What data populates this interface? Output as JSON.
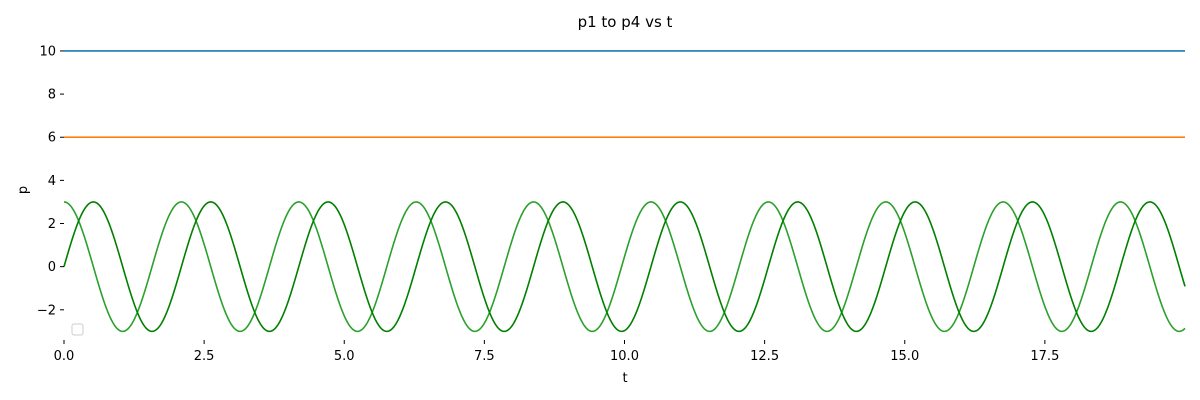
{
  "chart_data": {
    "type": "line",
    "title": "p1 to p4 vs t",
    "xlabel": "t",
    "ylabel": "p",
    "xlim": [
      0,
      20
    ],
    "ylim": [
      -3.4,
      10.6
    ],
    "xticks": [
      "0.0",
      "2.5",
      "5.0",
      "7.5",
      "10.0",
      "12.5",
      "15.0",
      "17.5"
    ],
    "xtick_values": [
      0,
      2.5,
      5,
      7.5,
      10,
      12.5,
      15,
      17.5
    ],
    "yticks": [
      "−2",
      "0",
      "2",
      "4",
      "6",
      "8",
      "10"
    ],
    "ytick_values": [
      -2,
      0,
      2,
      4,
      6,
      8,
      10
    ],
    "grid": false,
    "legend_position": "bottom-left",
    "series": [
      {
        "color": "#1f77b4",
        "x": [
          0,
          20
        ],
        "y": [
          10,
          10
        ]
      },
      {
        "color": "#ff7f0e",
        "x": [
          0,
          20
        ],
        "y": [
          6,
          6
        ]
      },
      {
        "color": "#2ca02c",
        "formula": "3*cos(3*t)",
        "x": [
          0,
          1.05,
          2.09,
          3.14,
          4.19,
          5.24,
          6.28,
          7.33,
          8.38,
          9.42,
          10.47,
          11.52,
          12.57,
          13.61,
          14.66,
          15.71,
          16.76,
          17.8,
          18.85,
          19.9
        ],
        "y": [
          3,
          -3,
          3,
          -3,
          3,
          -3,
          3,
          -3,
          3,
          -3,
          3,
          -3,
          3,
          -3,
          3,
          -3,
          3,
          -3,
          3,
          -3
        ]
      },
      {
        "color": "#008000",
        "formula": "3*sin(3*t)",
        "x": [
          0,
          0.52,
          1.57,
          2.62,
          3.67,
          4.71,
          5.76,
          6.81,
          7.85,
          8.9,
          9.95,
          11.0,
          12.04,
          13.09,
          14.14,
          15.18,
          16.23,
          17.28,
          18.33,
          19.37
        ],
        "y": [
          0,
          3,
          -3,
          3,
          -3,
          3,
          -3,
          3,
          -3,
          3,
          -3,
          3,
          -3,
          3,
          -3,
          3,
          -3,
          3,
          -3,
          3
        ]
      }
    ]
  }
}
